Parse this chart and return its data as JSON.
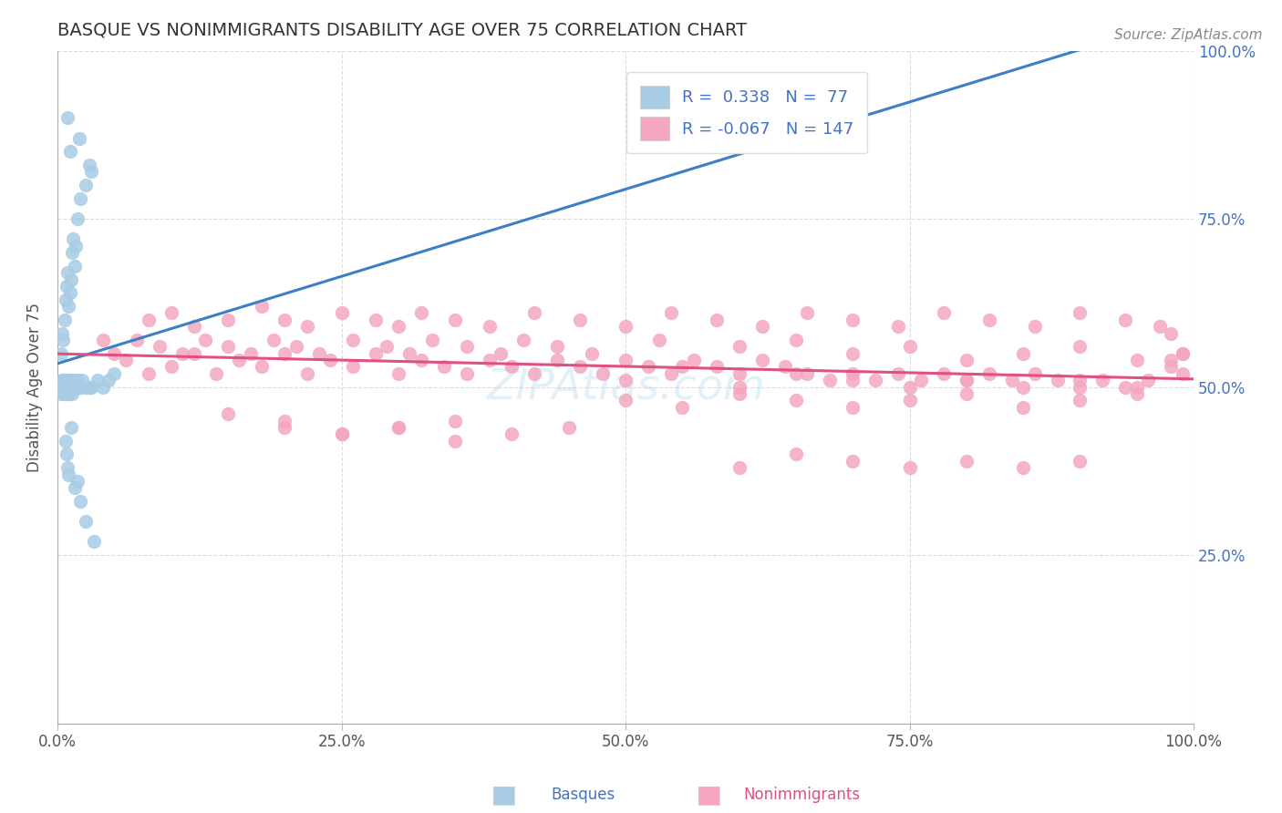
{
  "title": "BASQUE VS NONIMMIGRANTS DISABILITY AGE OVER 75 CORRELATION CHART",
  "source": "Source: ZipAtlas.com",
  "ylabel": "Disability Age Over 75",
  "r_basque": 0.338,
  "n_basque": 77,
  "r_nonimm": -0.067,
  "n_nonimm": 147,
  "xlim": [
    0.0,
    1.0
  ],
  "ylim": [
    0.0,
    1.0
  ],
  "xtick_labels": [
    "0.0%",
    "25.0%",
    "50.0%",
    "75.0%",
    "100.0%"
  ],
  "xtick_vals": [
    0.0,
    0.25,
    0.5,
    0.75,
    1.0
  ],
  "ytick_vals_right": [
    0.25,
    0.5,
    0.75,
    1.0
  ],
  "ytick_labels_right": [
    "25.0%",
    "50.0%",
    "75.0%",
    "100.0%"
  ],
  "color_basque": "#a8cce4",
  "color_nonimm": "#f4a7bf",
  "line_basque": "#3b7fc4",
  "line_nonimm": "#e05080",
  "background": "#ffffff",
  "legend_label_basque": "Basques",
  "legend_label_nonimm": "Nonimmigrants",
  "basque_x": [
    0.003,
    0.003,
    0.004,
    0.004,
    0.005,
    0.005,
    0.005,
    0.006,
    0.006,
    0.006,
    0.007,
    0.007,
    0.007,
    0.007,
    0.008,
    0.008,
    0.008,
    0.009,
    0.009,
    0.009,
    0.01,
    0.01,
    0.01,
    0.011,
    0.011,
    0.012,
    0.012,
    0.013,
    0.013,
    0.014,
    0.015,
    0.015,
    0.016,
    0.017,
    0.018,
    0.019,
    0.02,
    0.022,
    0.025,
    0.028,
    0.03,
    0.035,
    0.04,
    0.045,
    0.05,
    0.003,
    0.004,
    0.005,
    0.006,
    0.007,
    0.008,
    0.009,
    0.01,
    0.011,
    0.012,
    0.013,
    0.014,
    0.015,
    0.016,
    0.018,
    0.02,
    0.025,
    0.03,
    0.007,
    0.008,
    0.009,
    0.01,
    0.015,
    0.02,
    0.012,
    0.018,
    0.025,
    0.032,
    0.009,
    0.011,
    0.019,
    0.028
  ],
  "basque_y": [
    0.5,
    0.49,
    0.5,
    0.51,
    0.49,
    0.5,
    0.51,
    0.49,
    0.5,
    0.5,
    0.49,
    0.5,
    0.5,
    0.51,
    0.49,
    0.5,
    0.51,
    0.49,
    0.5,
    0.5,
    0.49,
    0.5,
    0.5,
    0.51,
    0.5,
    0.5,
    0.51,
    0.5,
    0.49,
    0.5,
    0.5,
    0.51,
    0.5,
    0.5,
    0.51,
    0.5,
    0.5,
    0.51,
    0.5,
    0.5,
    0.5,
    0.51,
    0.5,
    0.51,
    0.52,
    0.55,
    0.58,
    0.57,
    0.6,
    0.63,
    0.65,
    0.67,
    0.62,
    0.64,
    0.66,
    0.7,
    0.72,
    0.68,
    0.71,
    0.75,
    0.78,
    0.8,
    0.82,
    0.42,
    0.4,
    0.38,
    0.37,
    0.35,
    0.33,
    0.44,
    0.36,
    0.3,
    0.27,
    0.9,
    0.85,
    0.87,
    0.83
  ],
  "nonimm_x": [
    0.04,
    0.06,
    0.08,
    0.1,
    0.12,
    0.14,
    0.16,
    0.18,
    0.2,
    0.22,
    0.24,
    0.26,
    0.28,
    0.3,
    0.32,
    0.34,
    0.36,
    0.38,
    0.4,
    0.42,
    0.44,
    0.46,
    0.48,
    0.5,
    0.52,
    0.54,
    0.56,
    0.58,
    0.6,
    0.62,
    0.64,
    0.66,
    0.68,
    0.7,
    0.72,
    0.74,
    0.76,
    0.78,
    0.8,
    0.82,
    0.84,
    0.86,
    0.88,
    0.9,
    0.92,
    0.94,
    0.96,
    0.98,
    0.99,
    0.5,
    0.55,
    0.6,
    0.65,
    0.7,
    0.75,
    0.8,
    0.85,
    0.9,
    0.95,
    0.99,
    0.5,
    0.55,
    0.6,
    0.65,
    0.7,
    0.75,
    0.8,
    0.85,
    0.9,
    0.95,
    0.6,
    0.65,
    0.7,
    0.75,
    0.8,
    0.85,
    0.9,
    0.95,
    0.99,
    0.98,
    0.2,
    0.25,
    0.3,
    0.35,
    0.4,
    0.45,
    0.15,
    0.2,
    0.25,
    0.3,
    0.35,
    0.08,
    0.1,
    0.12,
    0.15,
    0.18,
    0.2,
    0.22,
    0.25,
    0.28,
    0.3,
    0.32,
    0.35,
    0.38,
    0.42,
    0.46,
    0.5,
    0.54,
    0.58,
    0.62,
    0.66,
    0.7,
    0.74,
    0.78,
    0.82,
    0.86,
    0.9,
    0.94,
    0.97,
    0.98,
    0.6,
    0.65,
    0.7,
    0.75,
    0.8,
    0.85,
    0.9,
    0.05,
    0.07,
    0.09,
    0.11,
    0.13,
    0.15,
    0.17,
    0.19,
    0.21,
    0.23,
    0.26,
    0.29,
    0.31,
    0.33,
    0.36,
    0.39,
    0.41,
    0.44,
    0.47,
    0.53
  ],
  "nonimm_y": [
    0.57,
    0.54,
    0.52,
    0.53,
    0.55,
    0.52,
    0.54,
    0.53,
    0.55,
    0.52,
    0.54,
    0.53,
    0.55,
    0.52,
    0.54,
    0.53,
    0.52,
    0.54,
    0.53,
    0.52,
    0.54,
    0.53,
    0.52,
    0.54,
    0.53,
    0.52,
    0.54,
    0.53,
    0.52,
    0.54,
    0.53,
    0.52,
    0.51,
    0.52,
    0.51,
    0.52,
    0.51,
    0.52,
    0.51,
    0.52,
    0.51,
    0.52,
    0.51,
    0.5,
    0.51,
    0.5,
    0.51,
    0.53,
    0.55,
    0.51,
    0.53,
    0.5,
    0.52,
    0.51,
    0.5,
    0.51,
    0.5,
    0.51,
    0.5,
    0.52,
    0.48,
    0.47,
    0.49,
    0.48,
    0.47,
    0.48,
    0.49,
    0.47,
    0.48,
    0.49,
    0.56,
    0.57,
    0.55,
    0.56,
    0.54,
    0.55,
    0.56,
    0.54,
    0.55,
    0.54,
    0.44,
    0.43,
    0.44,
    0.42,
    0.43,
    0.44,
    0.46,
    0.45,
    0.43,
    0.44,
    0.45,
    0.6,
    0.61,
    0.59,
    0.6,
    0.62,
    0.6,
    0.59,
    0.61,
    0.6,
    0.59,
    0.61,
    0.6,
    0.59,
    0.61,
    0.6,
    0.59,
    0.61,
    0.6,
    0.59,
    0.61,
    0.6,
    0.59,
    0.61,
    0.6,
    0.59,
    0.61,
    0.6,
    0.59,
    0.58,
    0.38,
    0.4,
    0.39,
    0.38,
    0.39,
    0.38,
    0.39,
    0.55,
    0.57,
    0.56,
    0.55,
    0.57,
    0.56,
    0.55,
    0.57,
    0.56,
    0.55,
    0.57,
    0.56,
    0.55,
    0.57,
    0.56,
    0.55,
    0.57,
    0.56,
    0.55,
    0.57
  ]
}
